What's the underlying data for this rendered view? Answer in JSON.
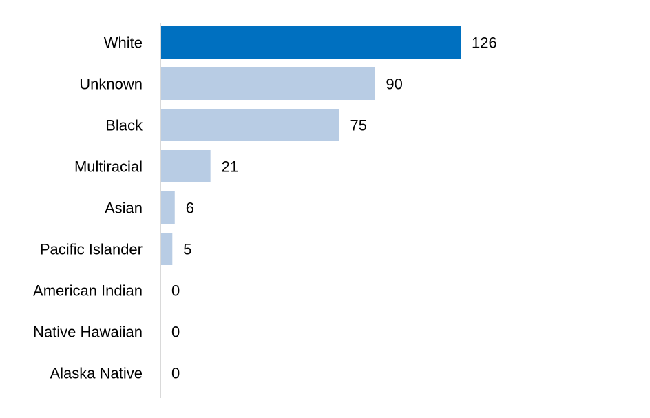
{
  "chart_data": {
    "type": "bar",
    "orientation": "horizontal",
    "title": "",
    "categories": [
      "White",
      "Unknown",
      "Black",
      "Multiracial",
      "Asian",
      "Pacific Islander",
      "American Indian",
      "Native Hawaiian",
      "Alaska Native"
    ],
    "values": [
      126,
      90,
      75,
      21,
      6,
      5,
      0,
      0,
      0
    ],
    "xlim": [
      0,
      130
    ],
    "grid": false,
    "legend": "none",
    "data_labels": true
  },
  "colors": {
    "highlight_bar": "#0070c0",
    "bar": "#b8cce4",
    "axis_line": "#d9d9d9"
  }
}
